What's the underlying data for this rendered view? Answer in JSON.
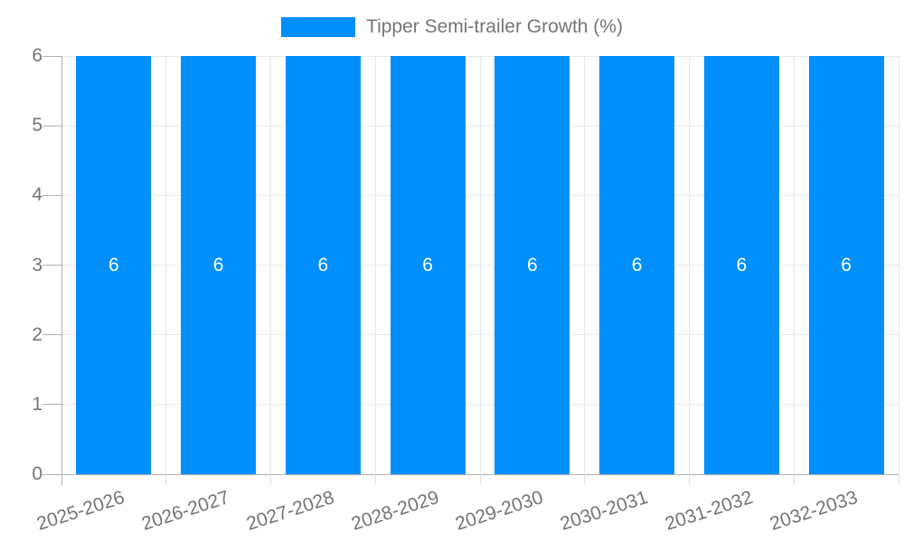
{
  "legend": {
    "label": "Tipper Semi-trailer Growth (%)"
  },
  "chart_data": {
    "type": "bar",
    "title": "",
    "categories": [
      "2025-2026",
      "2026-2027",
      "2027-2028",
      "2028-2029",
      "2029-2030",
      "2030-2031",
      "2031-2032",
      "2032-2033"
    ],
    "series": [
      {
        "name": "Tipper Semi-trailer Growth (%)",
        "values": [
          6,
          6,
          6,
          6,
          6,
          6,
          6,
          6
        ]
      }
    ],
    "bar_labels": [
      "6",
      "6",
      "6",
      "6",
      "6",
      "6",
      "6",
      "6"
    ],
    "xlabel": "",
    "ylabel": "",
    "ylim": [
      0,
      6
    ],
    "yticks": [
      0,
      1,
      2,
      3,
      4,
      5,
      6
    ],
    "ytick_labels": [
      "0",
      "1",
      "2",
      "3",
      "4",
      "5",
      "6"
    ],
    "grid": true,
    "legend_position": "top-center",
    "colors": {
      "bar": "#008FFB",
      "bar_label": "#ffffff",
      "axis": "#b0b0b0",
      "grid": "#e6e6e6",
      "text": "#757575"
    }
  }
}
